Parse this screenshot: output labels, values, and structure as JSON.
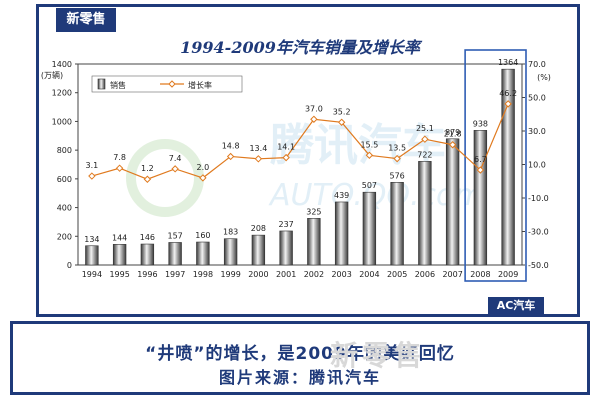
{
  "header": {
    "tag": "新零售"
  },
  "badge": {
    "text": "AC汽车"
  },
  "caption": {
    "line1": "“井喷”的增长，是2009年的美好回忆",
    "line2": "图片来源：腾讯汽车"
  },
  "watermark": {
    "text": "新零售"
  },
  "colors": {
    "frame": "#1f3a7a",
    "line": "#e07a1f",
    "bar": "#6f6f6f",
    "highlight": "#2f5db4"
  },
  "chart_data": {
    "type": "bar",
    "title": "1994-2009年汽车销量及增长率",
    "categories": [
      "1994",
      "1995",
      "1996",
      "1997",
      "1998",
      "1999",
      "2000",
      "2001",
      "2002",
      "2003",
      "2004",
      "2005",
      "2006",
      "2007",
      "2008",
      "2009"
    ],
    "series": [
      {
        "name": "销售",
        "type": "bar",
        "axis": "left",
        "values": [
          134,
          144,
          146,
          157,
          160,
          183,
          208,
          237,
          325,
          439,
          507,
          576,
          722,
          879,
          938,
          1364
        ]
      },
      {
        "name": "增长率",
        "type": "line",
        "axis": "right",
        "values": [
          3.1,
          7.8,
          1.2,
          7.4,
          2.0,
          14.8,
          13.4,
          14.1,
          37.0,
          35.2,
          15.5,
          13.5,
          25.1,
          21.8,
          6.7,
          46.2
        ]
      }
    ],
    "ylabel": "(万辆)",
    "y2label": "(%)",
    "ylim": [
      0,
      1400
    ],
    "y2lim": [
      -50,
      70
    ],
    "yticks": [
      "0",
      "200",
      "400",
      "600",
      "800",
      "1000",
      "1200",
      "1400"
    ],
    "y2ticks": [
      "-50.0",
      "-30.0",
      "-10.0",
      "10.0",
      "30.0",
      "50.0",
      "70.0"
    ],
    "legend_position": "top-left",
    "grid": false
  }
}
